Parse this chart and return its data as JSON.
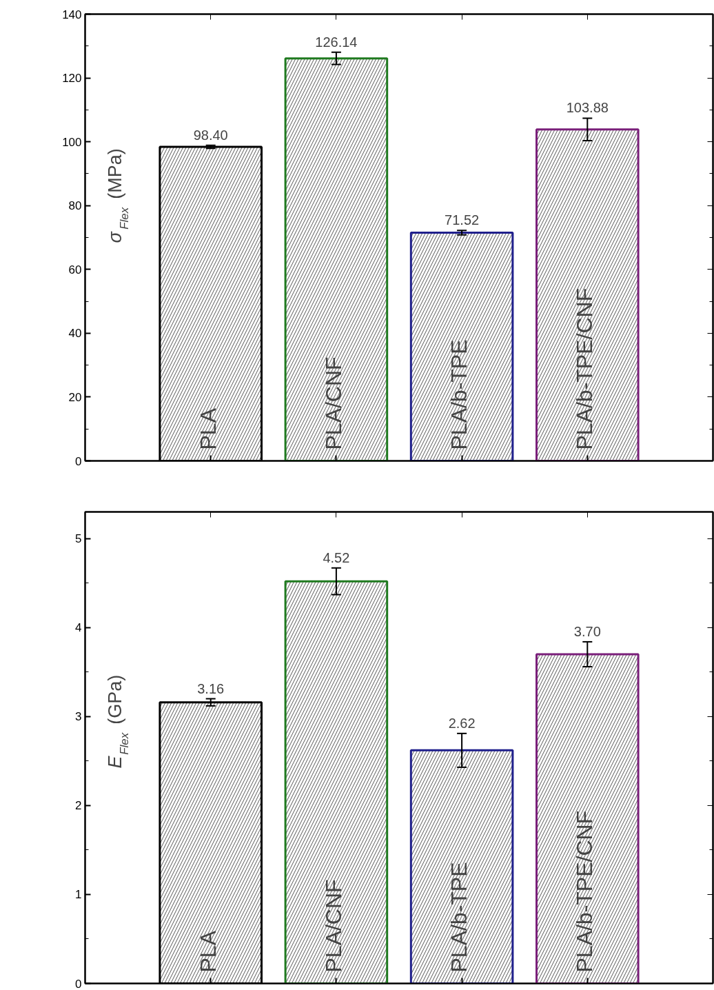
{
  "chart_data": [
    {
      "type": "bar",
      "ylabel": "σ$_{Flex}$ (MPa)",
      "categories": [
        "PLA",
        "PLA/CNF",
        "PLA/b-TPE",
        "PLA/b-TPE/CNF"
      ],
      "values": [
        98.4,
        126.14,
        71.52,
        103.88
      ],
      "errors": [
        0.5,
        1.9,
        0.7,
        3.5
      ],
      "value_labels": [
        "98.40",
        "126.14",
        "71.52",
        "103.88"
      ],
      "colors": [
        "#000000",
        "#1f7a1f",
        "#1f1f8c",
        "#7a1f7a"
      ],
      "ylim": [
        0,
        140
      ],
      "yticks": [
        0,
        20,
        40,
        60,
        80,
        100,
        120,
        140
      ],
      "grid": false
    },
    {
      "type": "bar",
      "ylabel": "E$_{Flex}$ (GPa)",
      "categories": [
        "PLA",
        "PLA/CNF",
        "PLA/b-TPE",
        "PLA/b-TPE/CNF"
      ],
      "values": [
        3.16,
        4.52,
        2.62,
        3.7
      ],
      "errors": [
        0.04,
        0.15,
        0.19,
        0.14
      ],
      "value_labels": [
        "3.16",
        "4.52",
        "2.62",
        "3.70"
      ],
      "colors": [
        "#000000",
        "#1f7a1f",
        "#1f1f8c",
        "#7a1f7a"
      ],
      "ylim": [
        0,
        5.3
      ],
      "yticks": [
        0,
        1,
        2,
        3,
        4,
        5
      ],
      "grid": false
    }
  ]
}
